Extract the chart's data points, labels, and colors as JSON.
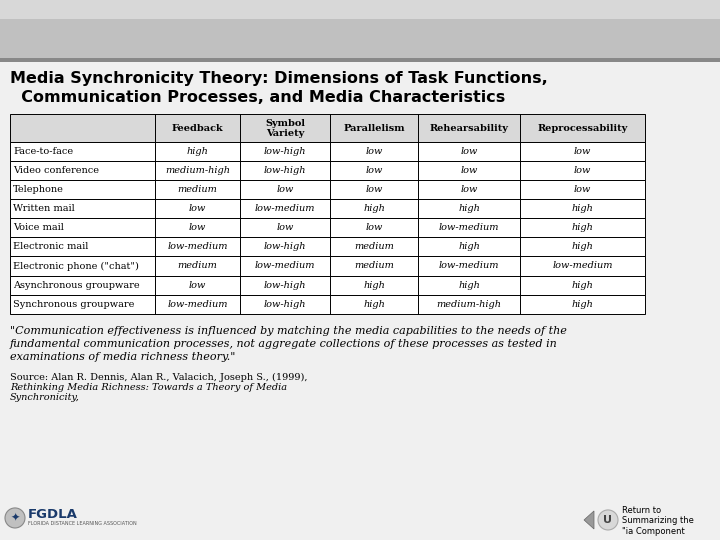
{
  "title_line1": "Media Synchronicity Theory: Dimensions of Task Functions,",
  "title_line2": "  Communication Processes, and Media Characteristics",
  "bg_banner": "#c8c8c8",
  "bg_main": "#f0f0f0",
  "table_headers": [
    "",
    "Feedback",
    "Symbol\nVariety",
    "Parallelism",
    "Rehearsability",
    "Reprocessability"
  ],
  "table_rows": [
    [
      "Face-to-face",
      "high",
      "low-high",
      "low",
      "low",
      "low"
    ],
    [
      "Video conference",
      "medium-high",
      "low-high",
      "low",
      "low",
      "low"
    ],
    [
      "Telephone",
      "medium",
      "low",
      "low",
      "low",
      "low"
    ],
    [
      "Written mail",
      "low",
      "low-medium",
      "high",
      "high",
      "high"
    ],
    [
      "Voice mail",
      "low",
      "low",
      "low",
      "low-medium",
      "high"
    ],
    [
      "Electronic mail",
      "low-medium",
      "low-high",
      "medium",
      "high",
      "high"
    ],
    [
      "Electronic phone (\"chat\")",
      "medium",
      "low-medium",
      "medium",
      "low-medium",
      "low-medium"
    ],
    [
      "Asynchronous groupware",
      "low",
      "low-high",
      "high",
      "high",
      "high"
    ],
    [
      "Synchronous groupware",
      "low-medium",
      "low-high",
      "high",
      "medium-high",
      "high"
    ]
  ],
  "quote_line1": "\"Communication effectiveness is influenced by matching the media capabilities to the needs of the",
  "quote_line2": "fundamental communication processes, not aggregate collections of these processes as tested in",
  "quote_line3": "examinations of media richness theory.\"",
  "source_normal": "Source: Alan R. Dennis, Alan R., Valacich, Joseph S., (1999), ",
  "source_italic": "Rethinking Media Richness: Towards a Theory of Media",
  "source_italic2": "Synchronicity,",
  "nav_text": "Return to\nSummarizing the\n\"ia Component",
  "header_bg": "#d9d9d9",
  "border_color": "#000000",
  "fgdla_color": "#1a3a6b"
}
